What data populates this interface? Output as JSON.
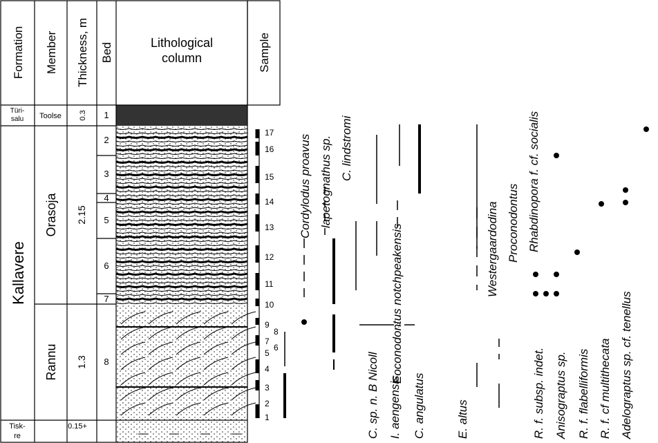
{
  "header": {
    "formation": "Formation",
    "member": "Member",
    "thickness": "Thickness, m",
    "bed": "Bed",
    "lithology": [
      "Lithological",
      "column"
    ],
    "sample": "Sample"
  },
  "formations": [
    {
      "lines": [
        "Türi-",
        "salu"
      ]
    },
    {
      "lines": [
        "Kallavere"
      ]
    },
    {
      "lines": [
        "Tisk-",
        "re"
      ]
    }
  ],
  "members": [
    "Toolse",
    "Orasoja",
    "Rannu"
  ],
  "thickness": [
    "0.3",
    "2.15",
    "1.3",
    "0.15+"
  ],
  "beds": [
    "1",
    "2",
    "3",
    "4",
    "5",
    "6",
    "7",
    "8"
  ],
  "samples": [
    "1",
    "2",
    "3",
    "4",
    "5",
    "6",
    "7",
    "8",
    "9",
    "10",
    "11",
    "12",
    "13",
    "14",
    "15",
    "16",
    "17"
  ],
  "taxa_upper": [
    "Cordylodus proavus",
    "lapetognathus sp.",
    "C. lindstromi",
    "Eoconodontus notchpeakensis",
    "Westergaardodina",
    "Proconodontus",
    "Rhabdinopora f. cf. socialis"
  ],
  "taxa_lower": [
    "C. sp. n. B Nicoll",
    "I. aengensis",
    "C. angulatus",
    "E. altus",
    "R. f. subsp. indet.",
    "Anisograptus sp.",
    "R. f. flabelliformis",
    "R. f. cf multithecata",
    "Adelograptus sp. cf. tenellus"
  ],
  "query": "?"
}
